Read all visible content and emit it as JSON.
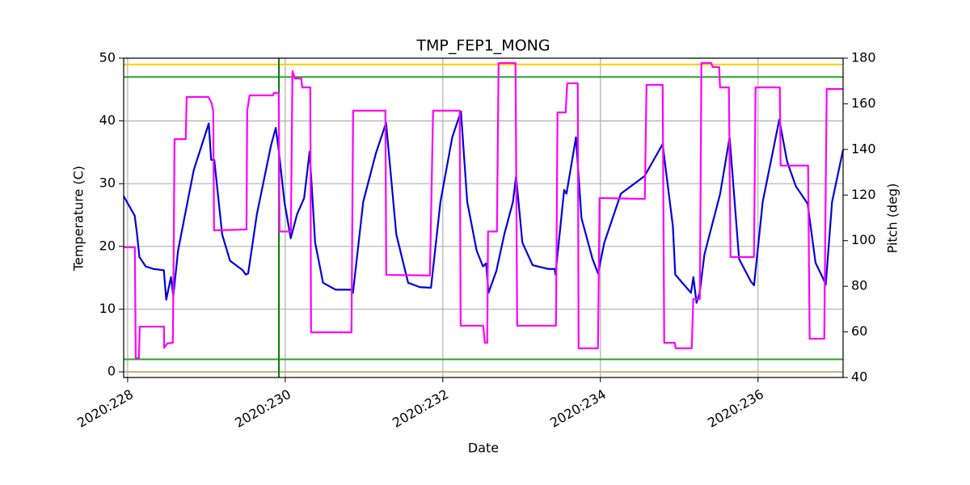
{
  "chart_data": {
    "type": "line",
    "title": "TMP_FEP1_MONG",
    "x_label": "Date",
    "y_label": "Temperature (C)",
    "y2_label": "Pitch (deg)",
    "grid": true,
    "xlim": [
      227.95,
      237.08
    ],
    "xticks": [
      {
        "value": 228,
        "label": "2020:228"
      },
      {
        "value": 230,
        "label": "2020:230"
      },
      {
        "value": 232,
        "label": "2020:232"
      },
      {
        "value": 234,
        "label": "2020:234"
      },
      {
        "value": 236,
        "label": "2020:236"
      }
    ],
    "ylim": [
      -0.9,
      50
    ],
    "yticks": [
      0,
      10,
      20,
      30,
      40,
      50
    ],
    "y2lim": [
      40,
      180
    ],
    "y2ticks": [
      40,
      60,
      80,
      100,
      120,
      140,
      160,
      180
    ],
    "y2_color": "#ff00ff",
    "hlines": [
      {
        "value": 49,
        "color": "#ffcc00"
      },
      {
        "value": 47,
        "color": "#2ca02c"
      },
      {
        "value": 2,
        "color": "#2ca02c"
      },
      {
        "value": 0,
        "color": "#c8b27a"
      }
    ],
    "vlines": [
      {
        "value": 229.92,
        "color": "#008000"
      }
    ],
    "series": [
      {
        "color": "#0000dd",
        "x": [
          227.95,
          228.09,
          228.12,
          228.15,
          228.23,
          228.33,
          228.46,
          228.49,
          228.55,
          228.58,
          228.64,
          228.72,
          228.84,
          229.03,
          229.06,
          229.1,
          229.2,
          229.3,
          229.46,
          229.5,
          229.53,
          229.64,
          229.82,
          229.88,
          229.92,
          229.99,
          230.07,
          230.15,
          230.24,
          230.31,
          230.38,
          230.48,
          230.64,
          230.84,
          230.86,
          230.99,
          231.15,
          231.28,
          231.41,
          231.56,
          231.71,
          231.85,
          231.97,
          232.12,
          232.23,
          232.31,
          232.43,
          232.51,
          232.55,
          232.58,
          232.68,
          232.78,
          232.89,
          232.93,
          233.01,
          233.14,
          233.34,
          233.42,
          233.43,
          233.54,
          233.57,
          233.69,
          233.76,
          233.9,
          233.97,
          234.05,
          234.26,
          234.56,
          234.79,
          234.92,
          234.95,
          235.15,
          235.18,
          235.22,
          235.26,
          235.32,
          235.52,
          235.64,
          235.76,
          235.91,
          235.95,
          236.06,
          236.27,
          236.37,
          236.48,
          236.63,
          236.73,
          236.83,
          236.86,
          236.94,
          237.08
        ],
        "values": [
          28,
          24.9,
          21.9,
          18.3,
          16.8,
          16.4,
          16.2,
          11.5,
          15.1,
          12.1,
          19.3,
          24.5,
          32.2,
          39.6,
          33.8,
          33.8,
          21.9,
          17.7,
          16.2,
          15.5,
          15.7,
          25.1,
          36.1,
          38.9,
          35.1,
          27.1,
          21.3,
          25.1,
          27.7,
          35.1,
          20.6,
          14.2,
          13.1,
          13.1,
          12.6,
          27.1,
          34.8,
          39.7,
          21.9,
          14.2,
          13.5,
          13.4,
          27.1,
          37.4,
          41.5,
          27.1,
          19.3,
          16.8,
          17.3,
          12.6,
          16.1,
          21.9,
          27.1,
          31.2,
          20.6,
          17.0,
          16.4,
          16.4,
          15.5,
          29.0,
          28.4,
          37.4,
          24.5,
          18.0,
          15.7,
          20.6,
          28.4,
          31.2,
          36.3,
          23.2,
          15.5,
          12.6,
          15.1,
          11.0,
          12.6,
          18.7,
          28.4,
          37.4,
          18.0,
          14.4,
          13.8,
          27.1,
          40.2,
          33.5,
          29.6,
          26.8,
          17.4,
          14.8,
          13.9,
          27.1,
          35.4
        ]
      },
      {
        "color": "#ff00ff",
        "axis": "y2",
        "x": [
          227.949,
          228.092,
          228.103,
          228.144,
          228.154,
          228.462,
          228.463,
          228.503,
          228.554,
          228.574,
          228.585,
          228.595,
          228.738,
          228.749,
          229.026,
          229.067,
          229.087,
          229.097,
          229.508,
          229.518,
          229.549,
          229.846,
          229.856,
          229.918,
          229.928,
          230.072,
          230.092,
          230.123,
          230.205,
          230.215,
          230.318,
          230.328,
          230.841,
          230.862,
          231.272,
          231.282,
          231.836,
          231.877,
          232.215,
          232.226,
          232.513,
          232.533,
          232.564,
          232.574,
          232.687,
          232.708,
          232.923,
          232.944,
          233.436,
          233.456,
          233.559,
          233.579,
          233.713,
          233.723,
          233.969,
          233.99,
          234.564,
          234.585,
          234.79,
          234.81,
          234.944,
          234.954,
          235.159,
          235.179,
          235.262,
          235.282,
          235.405,
          235.426,
          235.508,
          235.518,
          235.631,
          235.651,
          235.949,
          235.969,
          236.277,
          236.287,
          236.636,
          236.656,
          236.841,
          236.872,
          237.077
        ],
        "values": [
          97.1,
          97.1,
          48.5,
          48.5,
          62.3,
          62.3,
          53.0,
          54.9,
          55.2,
          55.2,
          95.6,
          144.5,
          144.5,
          163.0,
          163.0,
          160.2,
          156.6,
          104.5,
          104.9,
          157.0,
          163.7,
          163.7,
          164.8,
          164.8,
          104.0,
          104.0,
          174.3,
          171.1,
          171.1,
          167.2,
          167.2,
          59.8,
          59.8,
          157.0,
          157.0,
          85.0,
          84.7,
          157.0,
          157.0,
          62.7,
          62.7,
          55.2,
          55.2,
          104.0,
          104.0,
          177.9,
          177.9,
          62.7,
          62.7,
          156.2,
          156.2,
          169.0,
          169.0,
          52.8,
          52.8,
          118.7,
          118.3,
          168.3,
          168.3,
          55.2,
          55.2,
          52.8,
          52.8,
          74.4,
          74.4,
          177.9,
          177.9,
          176.1,
          176.1,
          167.2,
          167.2,
          92.8,
          92.8,
          167.2,
          167.2,
          132.9,
          132.9,
          57.0,
          57.0,
          166.5,
          166.5
        ]
      }
    ]
  }
}
